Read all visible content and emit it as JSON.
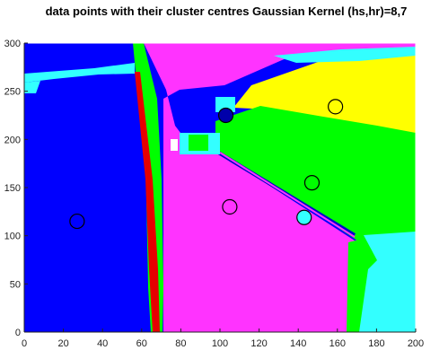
{
  "chart_data": {
    "type": "scatter",
    "title": "data points with their cluster centres Gaussian Kernel (hs,hr)=8,7",
    "xlabel": "",
    "ylabel": "",
    "xlim": [
      0,
      200
    ],
    "ylim": [
      0,
      300
    ],
    "xticks": [
      0,
      20,
      40,
      60,
      80,
      100,
      120,
      140,
      160,
      180,
      200
    ],
    "yticks": [
      0,
      50,
      100,
      150,
      200,
      250,
      300
    ],
    "grid": false,
    "colors": {
      "blue": "#0000ff",
      "magenta": "#ff33ff",
      "green": "#00ff00",
      "yellow": "#ffff00",
      "cyan": "#33ffff",
      "red": "#ff0000",
      "white": "#ffffff"
    },
    "cluster_centres": [
      {
        "x": 27,
        "y": 115,
        "fill": "none"
      },
      {
        "x": 103,
        "y": 225,
        "fill": "#0000aa"
      },
      {
        "x": 105,
        "y": 130,
        "fill": "none"
      },
      {
        "x": 147,
        "y": 155,
        "fill": "none"
      },
      {
        "x": 143,
        "y": 119,
        "fill": "#33ffff"
      },
      {
        "x": 159,
        "y": 234,
        "fill": "none"
      }
    ]
  }
}
